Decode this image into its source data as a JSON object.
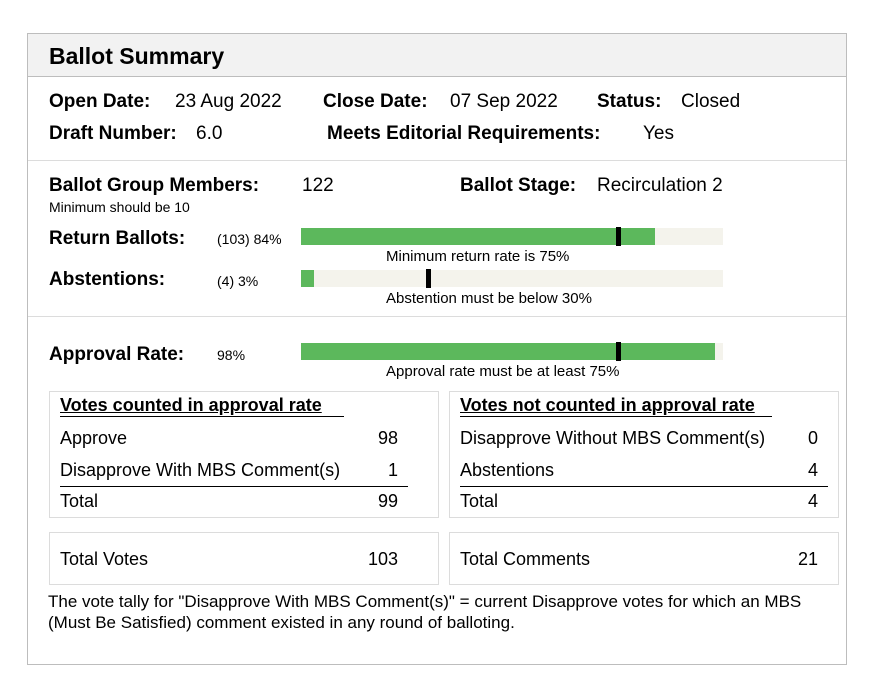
{
  "title": "Ballot Summary",
  "info": {
    "open_date_label": "Open Date:",
    "open_date": "23 Aug 2022",
    "close_date_label": "Close Date:",
    "close_date": "07 Sep 2022",
    "status_label": "Status:",
    "status": "Closed",
    "draft_label": "Draft Number:",
    "draft": "6.0",
    "editorial_label": "Meets Editorial Requirements:",
    "editorial": "Yes"
  },
  "group": {
    "members_label": "Ballot Group Members:",
    "members": "122",
    "members_min": "Minimum should be 10",
    "stage_label": "Ballot Stage:",
    "stage": "Recirculation 2"
  },
  "return_ballots": {
    "label": "Return Ballots:",
    "value": "(103) 84%",
    "fill_pct": 84,
    "threshold_pct": 75,
    "note": "Minimum return rate is 75%"
  },
  "abstentions": {
    "label": "Abstentions:",
    "value": "(4) 3%",
    "fill_pct": 3,
    "threshold_pct": 30,
    "note": "Abstention must be below 30%"
  },
  "approval": {
    "label": "Approval Rate:",
    "value": "98%",
    "fill_pct": 98,
    "threshold_pct": 75,
    "note": "Approval rate must be at least 75%"
  },
  "counted": {
    "header": "Votes counted in approval rate",
    "rows": [
      {
        "label": "Approve",
        "value": "98"
      },
      {
        "label": "Disapprove With MBS Comment(s)",
        "value": "1"
      }
    ],
    "total_label": "Total",
    "total": "99"
  },
  "not_counted": {
    "header": "Votes not counted in approval rate",
    "rows": [
      {
        "label": "Disapprove Without MBS Comment(s)",
        "value": "0"
      },
      {
        "label": "Abstentions",
        "value": "4"
      }
    ],
    "total_label": "Total",
    "total": "4"
  },
  "totals": {
    "votes_label": "Total Votes",
    "votes": "103",
    "comments_label": "Total Comments",
    "comments": "21"
  },
  "footnote": "The vote tally for \"Disapprove With MBS Comment(s)\" = current Disapprove votes for which an MBS (Must Be Satisfied) comment existed in any round of balloting.",
  "colors": {
    "bar_fill": "#5cb85c",
    "bar_track": "#f4f3ec",
    "marker": "#000000"
  }
}
